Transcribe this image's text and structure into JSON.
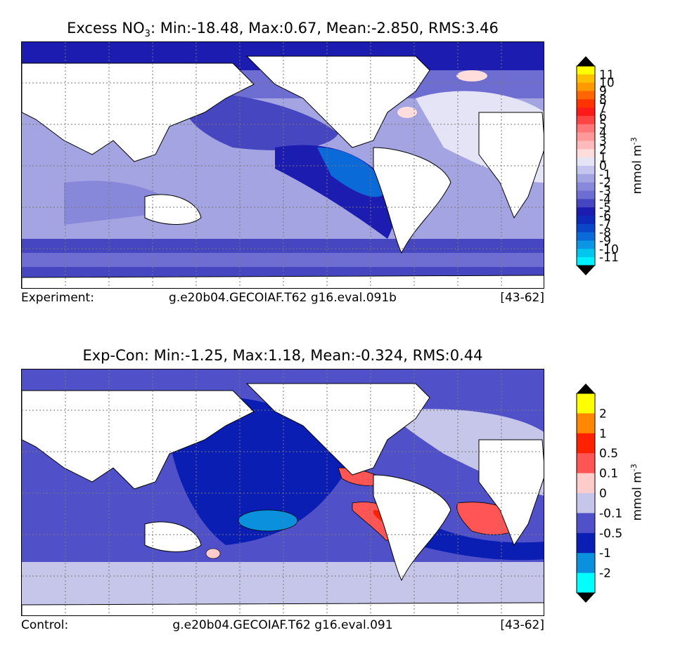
{
  "panels": [
    {
      "title_prefix": "Excess NO",
      "title_sub": "3",
      "title_suffix": ": Min:-18.48, Max:0.67, Mean:-2.850, RMS:3.46",
      "footer_label": "Experiment:",
      "footer_case": "g.e20b04.GECOIAF.T62 g16.eval.091b",
      "footer_years": "[43-62]",
      "colorbar": {
        "units": "mmol m",
        "units_exp": "-3",
        "levels": [
          "11",
          "10",
          "9",
          "8",
          "7",
          "6",
          "5",
          "4",
          "3",
          "2",
          "1",
          "0",
          "-1",
          "-2",
          "-3",
          "-4",
          "-5",
          "-6",
          "-7",
          "-8",
          "-9",
          "-10",
          "-11"
        ],
        "colors": [
          "#ffff00",
          "#ffc000",
          "#ff9900",
          "#ff6600",
          "#ff3300",
          "#ff1a1a",
          "#ff4444",
          "#ff7777",
          "#ff9999",
          "#ffbbbb",
          "#ffdddd",
          "#e4e4f6",
          "#c4c4ee",
          "#a4a4e2",
          "#8888da",
          "#6e6ed2",
          "#4646c0",
          "#1c1cb0",
          "#0f2ab8",
          "#0a46c8",
          "#0a6ad8",
          "#0a96e4",
          "#00c6f0",
          "#00f0ff"
        ]
      }
    },
    {
      "title_prefix": "Exp-Con: Min:-1.25, Max:1.18, Mean:-0.324, RMS:0.44",
      "title_sub": "",
      "title_suffix": "",
      "footer_label": "Control:",
      "footer_case": "g.e20b04.GECOIAF.T62 g16.eval.091",
      "footer_years": "[43-62]",
      "colorbar": {
        "units": "mmol m",
        "units_exp": "-3",
        "levels": [
          "2",
          "1",
          "0.5",
          "0.1",
          "0",
          "-0.1",
          "-0.5",
          "-1",
          "-2"
        ],
        "colors": [
          "#ffff00",
          "#ff8800",
          "#ff2200",
          "#ff5555",
          "#ffcccc",
          "#c6c6ea",
          "#5050c8",
          "#0a1eb4",
          "#0a90dc",
          "#00ffff"
        ]
      }
    }
  ],
  "map_colors": {
    "land": "#ffffff",
    "coast": "#000000",
    "grid": "#777777"
  }
}
